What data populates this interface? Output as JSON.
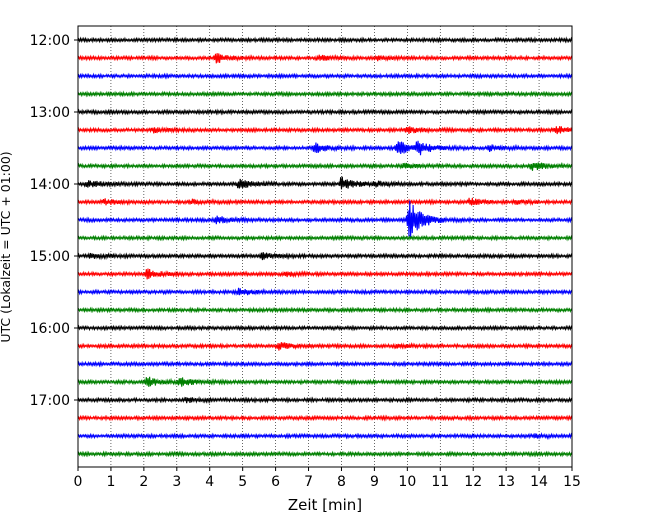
{
  "chart_data": {
    "type": "line",
    "title": "",
    "xlabel": "Zeit  [min]",
    "ylabel": "UTC (Lokalzeit = UTC + 01:00)",
    "xlim": [
      0,
      15
    ],
    "x_ticks": [
      "0",
      "1",
      "2",
      "3",
      "4",
      "5",
      "6",
      "7",
      "8",
      "9",
      "10",
      "11",
      "12",
      "13",
      "14",
      "15"
    ],
    "y_ticks": [
      "12:00",
      "13:00",
      "14:00",
      "15:00",
      "16:00",
      "17:00"
    ],
    "grid_x": true,
    "color_cycle": [
      "#000000",
      "#ff0000",
      "#0000ff",
      "#008000"
    ],
    "traces": [
      {
        "start": "12:00",
        "events": []
      },
      {
        "start": "12:15",
        "events": [
          {
            "t": 4.2,
            "amp": 0.7
          },
          {
            "t": 7.3,
            "amp": 0.3
          },
          {
            "t": 9.1,
            "amp": 0.25
          }
        ]
      },
      {
        "start": "12:30",
        "events": []
      },
      {
        "start": "12:45",
        "events": []
      },
      {
        "start": "13:00",
        "events": []
      },
      {
        "start": "13:15",
        "events": [
          {
            "t": 2.3,
            "amp": 0.3
          },
          {
            "t": 10.0,
            "amp": 0.4
          },
          {
            "t": 14.5,
            "amp": 0.5
          }
        ]
      },
      {
        "start": "13:30",
        "events": [
          {
            "t": 7.2,
            "amp": 0.6
          },
          {
            "t": 9.7,
            "amp": 1.0
          },
          {
            "t": 10.3,
            "amp": 0.9
          },
          {
            "t": 12.5,
            "amp": 0.35
          }
        ]
      },
      {
        "start": "13:45",
        "events": [
          {
            "t": 13.8,
            "amp": 0.55
          },
          {
            "t": 9.9,
            "amp": 0.3
          }
        ]
      },
      {
        "start": "14:00",
        "events": [
          {
            "t": 0.3,
            "amp": 0.5
          },
          {
            "t": 4.9,
            "amp": 0.7
          },
          {
            "t": 8.0,
            "amp": 0.9
          },
          {
            "t": 9.0,
            "amp": 0.35
          }
        ]
      },
      {
        "start": "14:15",
        "events": [
          {
            "t": 0.8,
            "amp": 0.35
          },
          {
            "t": 3.4,
            "amp": 0.3
          },
          {
            "t": 11.9,
            "amp": 0.45
          },
          {
            "t": 13.3,
            "amp": 0.2
          }
        ]
      },
      {
        "start": "14:30",
        "events": [
          {
            "t": 4.2,
            "amp": 0.5
          },
          {
            "t": 10.05,
            "amp": 3.0
          }
        ]
      },
      {
        "start": "14:45",
        "events": []
      },
      {
        "start": "15:00",
        "events": [
          {
            "t": 0.4,
            "amp": 0.3
          },
          {
            "t": 5.6,
            "amp": 0.35
          }
        ]
      },
      {
        "start": "15:15",
        "events": [
          {
            "t": 2.1,
            "amp": 0.6
          },
          {
            "t": 6.3,
            "amp": 0.25
          }
        ]
      },
      {
        "start": "15:30",
        "events": [
          {
            "t": 4.9,
            "amp": 0.45
          }
        ]
      },
      {
        "start": "15:45",
        "events": []
      },
      {
        "start": "16:00",
        "events": []
      },
      {
        "start": "16:15",
        "events": [
          {
            "t": 6.1,
            "amp": 0.45
          },
          {
            "t": 9.7,
            "amp": 0.3
          }
        ]
      },
      {
        "start": "16:30",
        "events": []
      },
      {
        "start": "16:45",
        "events": [
          {
            "t": 2.1,
            "amp": 0.7
          },
          {
            "t": 3.1,
            "amp": 0.55
          }
        ]
      },
      {
        "start": "17:00",
        "events": [
          {
            "t": 3.3,
            "amp": 0.25
          }
        ]
      },
      {
        "start": "17:15",
        "events": []
      },
      {
        "start": "17:30",
        "events": [
          {
            "t": 13.9,
            "amp": 0.2
          }
        ]
      },
      {
        "start": "17:45",
        "events": []
      }
    ]
  }
}
